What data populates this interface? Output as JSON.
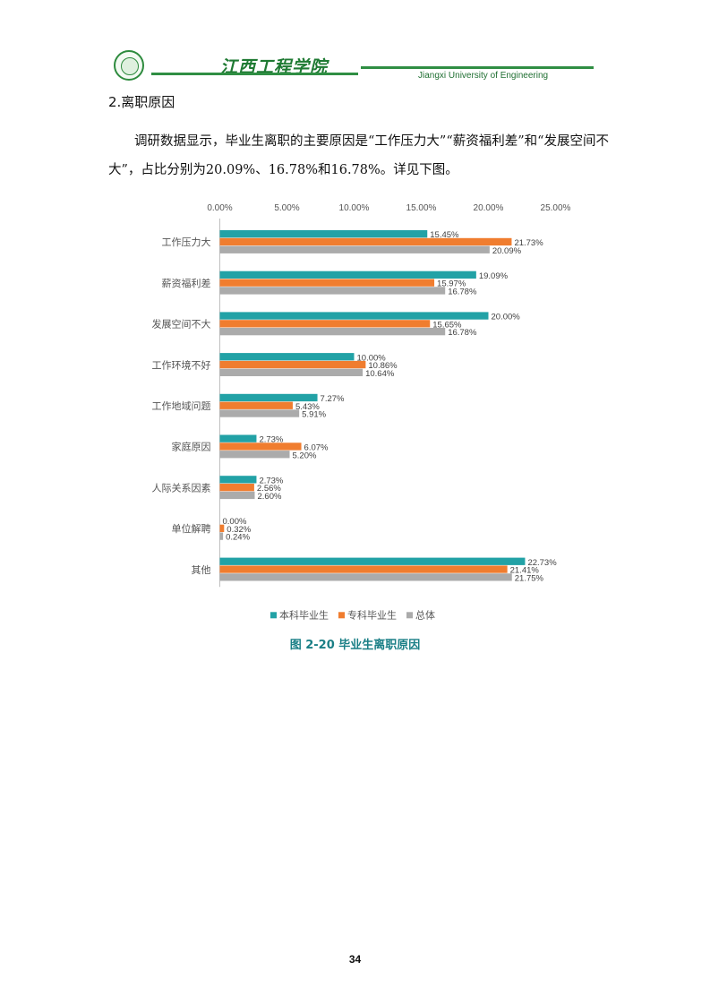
{
  "header": {
    "school_name_cn": "江西工程学院",
    "school_name_en": "Jiangxi University of Engineering",
    "colors": {
      "brand_green": "#2f8e43"
    }
  },
  "section": {
    "title": "2.离职原因",
    "paragraph": "调研数据显示，毕业生离职的主要原因是“工作压力大”“薪资福利差”和“发展空间不大”，占比分别为20.09%、16.78%和16.78%。详见下图。"
  },
  "chart_data": {
    "type": "bar",
    "orientation": "horizontal",
    "categories": [
      "工作压力大",
      "薪资福利差",
      "发展空间不大",
      "工作环境不好",
      "工作地域问题",
      "家庭原因",
      "人际关系因素",
      "单位解聘",
      "其他"
    ],
    "series": [
      {
        "name": "本科毕业生",
        "color": "#22a2a6",
        "values": [
          15.45,
          19.09,
          20.0,
          10.0,
          7.27,
          2.73,
          2.73,
          0.0,
          22.73
        ]
      },
      {
        "name": "专科毕业生",
        "color": "#f07d2f",
        "values": [
          21.73,
          15.97,
          15.65,
          10.86,
          5.43,
          6.07,
          2.56,
          0.32,
          21.41
        ]
      },
      {
        "name": "总体",
        "color": "#ababab",
        "values": [
          20.09,
          16.78,
          16.78,
          10.64,
          5.91,
          5.2,
          2.6,
          0.24,
          21.75
        ]
      }
    ],
    "data_labels": [
      [
        "15.45%",
        "19.09%",
        "20.00%",
        "10.00%",
        "7.27%",
        "2.73%",
        "2.73%",
        "0.00%",
        "22.73%"
      ],
      [
        "21.73%",
        "15.97%",
        "15.65%",
        "10.86%",
        "5.43%",
        "6.07%",
        "2.56%",
        "0.32%",
        "21.41%"
      ],
      [
        "20.09%",
        "16.78%",
        "16.78%",
        "10.64%",
        "5.91%",
        "5.20%",
        "2.60%",
        "0.24%",
        "21.75%"
      ]
    ],
    "x_ticks": [
      "0.00%",
      "5.00%",
      "10.00%",
      "15.00%",
      "20.00%",
      "25.00%"
    ],
    "xlim": [
      0,
      25
    ],
    "x_axis_position": "top",
    "legend_position": "bottom",
    "grid": false
  },
  "figure": {
    "caption": "图 2-20 毕业生离职原因"
  },
  "footer": {
    "page_number": "34"
  }
}
